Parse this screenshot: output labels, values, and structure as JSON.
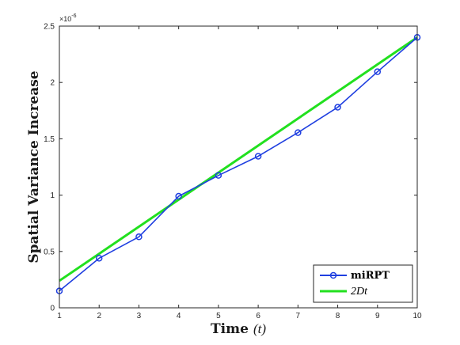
{
  "chart_data": {
    "type": "line",
    "xlabel": {
      "text": "Time",
      "math": "(t)"
    },
    "ylabel": "Spatial Variance Increase",
    "xlim": [
      1,
      10
    ],
    "ylim": [
      0,
      2.5
    ],
    "x_ticks": [
      1,
      2,
      3,
      4,
      5,
      6,
      7,
      8,
      9,
      10
    ],
    "y_ticks": [
      0,
      0.5,
      1,
      1.5,
      2,
      2.5
    ],
    "y_tick_labels": [
      "0",
      "0.5",
      "1",
      "1.5",
      "2",
      "2.5"
    ],
    "y_exponent": {
      "base": "×10",
      "power": "-6"
    },
    "grid": false,
    "legend_position": "bottom-right",
    "series": [
      {
        "name": "miRPT",
        "color": "#1f3fe0",
        "marker": "circle",
        "x": [
          1,
          2,
          3,
          4,
          5,
          6,
          7,
          8,
          9,
          10
        ],
        "y": [
          0.15,
          0.44,
          0.63,
          0.99,
          1.175,
          1.345,
          1.555,
          1.78,
          2.095,
          2.4
        ]
      },
      {
        "name": "2Dt",
        "color": "#22e01f",
        "marker": "none",
        "x": [
          1,
          10
        ],
        "y": [
          0.24,
          2.4
        ]
      }
    ]
  }
}
